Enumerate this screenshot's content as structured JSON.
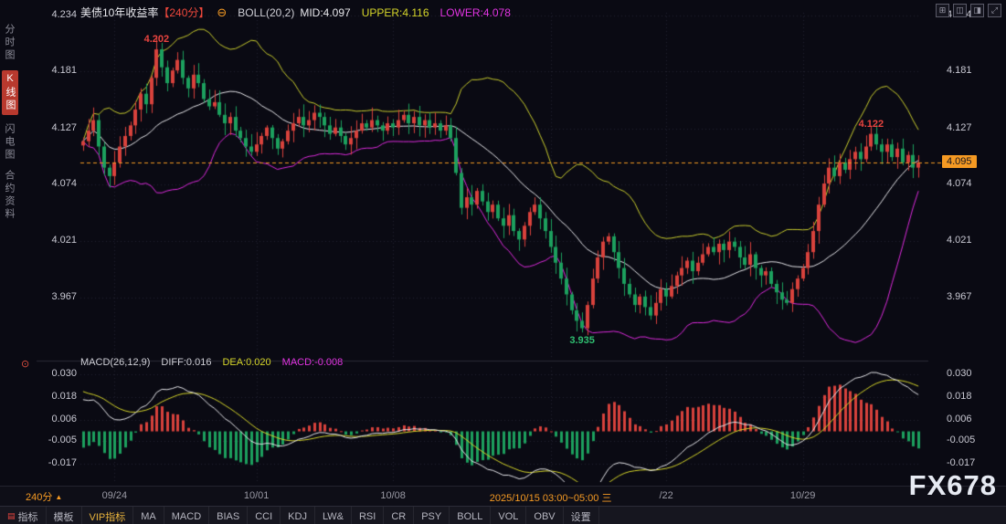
{
  "header": {
    "title": "美债10年收益率",
    "period_tag": "【240分】",
    "collapse_icon": "⊖",
    "boll_label": "BOLL(20,2)",
    "mid": "MID:4.097",
    "upper": "UPPER:4.116",
    "lower": "LOWER:4.078",
    "window_icons": [
      "⊞",
      "◫",
      "◨",
      "⤢"
    ]
  },
  "sidebar": {
    "items": [
      {
        "label": "分时图",
        "active": false
      },
      {
        "label": "K线图",
        "active": true
      },
      {
        "label": "闪电图",
        "active": false
      },
      {
        "label": "合约资料",
        "active": false
      }
    ]
  },
  "macd_header": {
    "icon": "⊙",
    "label": "MACD(26,12,9)",
    "diff": "DIFF:0.016",
    "dea": "DEA:0.020",
    "macd": "MACD:-0.008"
  },
  "footer": {
    "period": "240分",
    "arrow": "▲"
  },
  "toolbar": {
    "items": [
      {
        "label": "指标",
        "icon": "▤"
      },
      {
        "label": "模板"
      },
      {
        "label": "VIP指标"
      },
      {
        "label": "MA"
      },
      {
        "label": "MACD"
      },
      {
        "label": "BIAS"
      },
      {
        "label": "CCI"
      },
      {
        "label": "KDJ"
      },
      {
        "label": "LW&"
      },
      {
        "label": "RSI"
      },
      {
        "label": "CR"
      },
      {
        "label": "PSY"
      },
      {
        "label": "BOLL"
      },
      {
        "label": "VOL"
      },
      {
        "label": "OBV"
      },
      {
        "label": "设置"
      }
    ]
  },
  "watermark": "FX678",
  "colors": {
    "background": "#0a0a13",
    "up": "#d8423c",
    "down": "#1ca05e",
    "boll_upper": "#c9cd2e",
    "boll_mid": "#e6e6ea",
    "boll_lower": "#dd2bdd",
    "diff_line": "#e6e6ea",
    "dea_line": "#d6d62a",
    "accent": "#f59a23",
    "highlight_red": "#e8443f",
    "annotation_green": "#2fbf71",
    "grid": "#232330",
    "divider": "#2a2a36",
    "tick_text": "#c8c8d2"
  },
  "chart_data": {
    "type": "candlestick",
    "title": "美债10年收益率 240分 K线 + BOLL(20,2) + MACD(26,12,9)",
    "price_axis_ticks": [
      4.234,
      4.181,
      4.127,
      4.074,
      4.021,
      3.967
    ],
    "macd_axis_ticks": [
      0.03,
      0.018,
      0.006,
      -0.005,
      -0.017
    ],
    "last_price": 4.095,
    "boll": {
      "period": 20,
      "width": 2,
      "mid": 4.097,
      "upper": 4.116,
      "lower": 4.078
    },
    "macd": {
      "fast": 12,
      "slow": 26,
      "signal": 9,
      "diff": 0.016,
      "dea": 0.02,
      "macd": -0.008
    },
    "x_ticks": [
      {
        "label": "09/24",
        "index": 6
      },
      {
        "label": "10/01",
        "index": 33
      },
      {
        "label": "10/08",
        "index": 59
      },
      {
        "label": "2025/10/15 03:00~05:00 三",
        "index": 89,
        "highlight": true
      },
      {
        "label": "/22",
        "index": 111
      },
      {
        "label": "10/29",
        "index": 137
      }
    ],
    "annotations": [
      {
        "text": "4.202",
        "index": 14,
        "value": 4.202,
        "color": "red",
        "placement": "above"
      },
      {
        "text": "3.935",
        "index": 95,
        "value": 3.935,
        "color": "green",
        "placement": "below"
      },
      {
        "text": "4.122",
        "index": 150,
        "value": 4.122,
        "color": "red",
        "placement": "above"
      }
    ],
    "wick_amplitude": 0.01,
    "close": [
      4.115,
      4.125,
      4.135,
      4.11,
      4.09,
      4.082,
      4.095,
      4.11,
      4.12,
      4.13,
      4.145,
      4.16,
      4.15,
      4.175,
      4.202,
      4.185,
      4.17,
      4.182,
      4.192,
      4.175,
      4.165,
      4.178,
      4.17,
      4.155,
      4.148,
      4.152,
      4.14,
      4.132,
      4.138,
      4.125,
      4.118,
      4.11,
      4.105,
      4.112,
      4.12,
      4.128,
      4.118,
      4.108,
      4.115,
      4.125,
      4.132,
      4.138,
      4.13,
      4.135,
      4.142,
      4.138,
      4.13,
      4.122,
      4.128,
      4.12,
      4.112,
      4.118,
      4.125,
      4.132,
      4.128,
      4.135,
      4.13,
      4.125,
      4.132,
      4.128,
      4.135,
      4.14,
      4.132,
      4.138,
      4.13,
      4.135,
      4.128,
      4.132,
      4.125,
      4.13,
      4.118,
      4.085,
      4.052,
      4.062,
      4.055,
      4.068,
      4.058,
      4.048,
      4.055,
      4.042,
      4.035,
      4.045,
      4.03,
      4.022,
      4.035,
      4.048,
      4.055,
      4.042,
      4.03,
      4.015,
      4.0,
      3.985,
      3.97,
      3.955,
      3.945,
      3.938,
      3.96,
      3.985,
      4.005,
      4.02,
      4.025,
      4.01,
      3.995,
      3.98,
      3.97,
      3.96,
      3.968,
      3.958,
      3.95,
      3.962,
      3.975,
      3.968,
      3.978,
      3.988,
      3.995,
      4.002,
      3.992,
      4.0,
      4.008,
      4.015,
      4.01,
      4.018,
      4.012,
      4.02,
      4.015,
      4.005,
      3.998,
      4.008,
      3.995,
      3.988,
      3.992,
      3.98,
      3.972,
      3.965,
      3.962,
      3.975,
      3.985,
      3.995,
      4.01,
      4.03,
      4.055,
      4.075,
      4.09,
      4.082,
      4.095,
      4.088,
      4.098,
      4.105,
      4.098,
      4.11,
      4.122,
      4.112,
      4.105,
      4.112,
      4.1,
      4.108,
      4.095,
      4.102,
      4.09,
      4.095
    ]
  }
}
